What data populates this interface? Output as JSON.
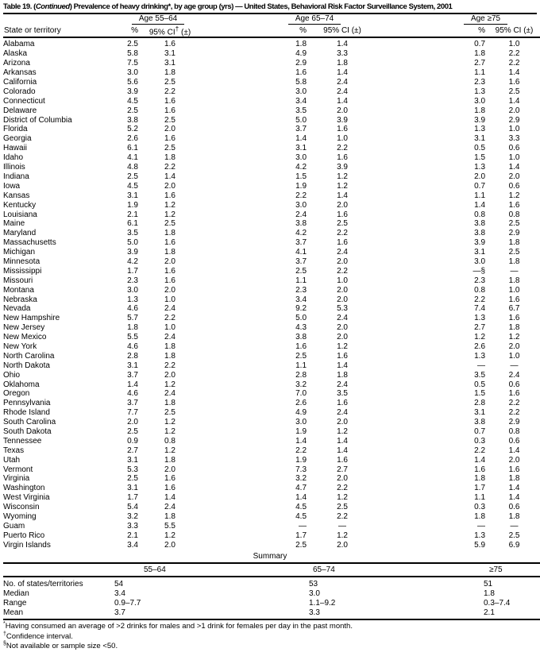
{
  "title": {
    "part1": "Table 19. (",
    "part2": "Continued",
    "part3": ") Prevalence of heavy drinking*, by age group (yrs) — United States, Behavioral Risk Factor Surveillance System, 2001"
  },
  "table": {
    "state_col_header": "State or territory",
    "groups": [
      {
        "label": "Age 55–64",
        "pct_header": "%",
        "ci_pre": "95% CI",
        "ci_sup": "†",
        "ci_post": " (±)"
      },
      {
        "label": "Age 65–74",
        "pct_header": "%",
        "ci_pre": "95% CI",
        "ci_sup": "",
        "ci_post": " (±)"
      },
      {
        "label": "Age ≥75",
        "pct_header": "%",
        "ci_pre": "95% CI",
        "ci_sup": "",
        "ci_post": " (±)"
      }
    ],
    "rows": [
      {
        "state": "Alabama",
        "g1": [
          "2.5",
          "1.6"
        ],
        "g2": [
          "1.8",
          "1.4"
        ],
        "g3": [
          "0.7",
          "1.0"
        ]
      },
      {
        "state": "Alaska",
        "g1": [
          "5.8",
          "3.1"
        ],
        "g2": [
          "4.9",
          "3.3"
        ],
        "g3": [
          "1.8",
          "2.2"
        ]
      },
      {
        "state": "Arizona",
        "g1": [
          "7.5",
          "3.1"
        ],
        "g2": [
          "2.9",
          "1.8"
        ],
        "g3": [
          "2.7",
          "2.2"
        ]
      },
      {
        "state": "Arkansas",
        "g1": [
          "3.0",
          "1.8"
        ],
        "g2": [
          "1.6",
          "1.4"
        ],
        "g3": [
          "1.1",
          "1.4"
        ]
      },
      {
        "state": "California",
        "g1": [
          "5.6",
          "2.5"
        ],
        "g2": [
          "5.8",
          "2.4"
        ],
        "g3": [
          "2.3",
          "1.6"
        ]
      },
      {
        "state": "Colorado",
        "g1": [
          "3.9",
          "2.2"
        ],
        "g2": [
          "3.0",
          "2.4"
        ],
        "g3": [
          "1.3",
          "2.5"
        ]
      },
      {
        "state": "Connecticut",
        "g1": [
          "4.5",
          "1.6"
        ],
        "g2": [
          "3.4",
          "1.4"
        ],
        "g3": [
          "3.0",
          "1.4"
        ]
      },
      {
        "state": "Delaware",
        "g1": [
          "2.5",
          "1.6"
        ],
        "g2": [
          "3.5",
          "2.0"
        ],
        "g3": [
          "1.8",
          "2.0"
        ]
      },
      {
        "state": "District of Columbia",
        "g1": [
          "3.8",
          "2.5"
        ],
        "g2": [
          "5.0",
          "3.9"
        ],
        "g3": [
          "3.9",
          "2.9"
        ]
      },
      {
        "state": "Florida",
        "g1": [
          "5.2",
          "2.0"
        ],
        "g2": [
          "3.7",
          "1.6"
        ],
        "g3": [
          "1.3",
          "1.0"
        ]
      },
      {
        "state": "Georgia",
        "g1": [
          "2.6",
          "1.6"
        ],
        "g2": [
          "1.4",
          "1.0"
        ],
        "g3": [
          "3.1",
          "3.3"
        ]
      },
      {
        "state": "Hawaii",
        "g1": [
          "6.1",
          "2.5"
        ],
        "g2": [
          "3.1",
          "2.2"
        ],
        "g3": [
          "0.5",
          "0.6"
        ]
      },
      {
        "state": "Idaho",
        "g1": [
          "4.1",
          "1.8"
        ],
        "g2": [
          "3.0",
          "1.6"
        ],
        "g3": [
          "1.5",
          "1.0"
        ]
      },
      {
        "state": "Illinois",
        "g1": [
          "4.8",
          "2.2"
        ],
        "g2": [
          "4.2",
          "3.9"
        ],
        "g3": [
          "1.3",
          "1.4"
        ]
      },
      {
        "state": "Indiana",
        "g1": [
          "2.5",
          "1.4"
        ],
        "g2": [
          "1.5",
          "1.2"
        ],
        "g3": [
          "2.0",
          "2.0"
        ]
      },
      {
        "state": "Iowa",
        "g1": [
          "4.5",
          "2.0"
        ],
        "g2": [
          "1.9",
          "1.2"
        ],
        "g3": [
          "0.7",
          "0.6"
        ]
      },
      {
        "state": "Kansas",
        "g1": [
          "3.1",
          "1.6"
        ],
        "g2": [
          "2.2",
          "1.4"
        ],
        "g3": [
          "1.1",
          "1.2"
        ]
      },
      {
        "state": "Kentucky",
        "g1": [
          "1.9",
          "1.2"
        ],
        "g2": [
          "3.0",
          "2.0"
        ],
        "g3": [
          "1.4",
          "1.6"
        ]
      },
      {
        "state": "Louisiana",
        "g1": [
          "2.1",
          "1.2"
        ],
        "g2": [
          "2.4",
          "1.6"
        ],
        "g3": [
          "0.8",
          "0.8"
        ]
      },
      {
        "state": "Maine",
        "g1": [
          "6.1",
          "2.5"
        ],
        "g2": [
          "3.8",
          "2.5"
        ],
        "g3": [
          "3.8",
          "2.5"
        ]
      },
      {
        "state": "Maryland",
        "g1": [
          "3.5",
          "1.8"
        ],
        "g2": [
          "4.2",
          "2.2"
        ],
        "g3": [
          "3.8",
          "2.9"
        ]
      },
      {
        "state": "Massachusetts",
        "g1": [
          "5.0",
          "1.6"
        ],
        "g2": [
          "3.7",
          "1.6"
        ],
        "g3": [
          "3.9",
          "1.8"
        ]
      },
      {
        "state": "Michigan",
        "g1": [
          "3.9",
          "1.8"
        ],
        "g2": [
          "4.1",
          "2.4"
        ],
        "g3": [
          "3.1",
          "2.5"
        ]
      },
      {
        "state": "Minnesota",
        "g1": [
          "4.2",
          "2.0"
        ],
        "g2": [
          "3.7",
          "2.0"
        ],
        "g3": [
          "3.0",
          "1.8"
        ]
      },
      {
        "state": "Mississippi",
        "g1": [
          "1.7",
          "1.6"
        ],
        "g2": [
          "2.5",
          "2.2"
        ],
        "g3": [
          "—§",
          "—"
        ]
      },
      {
        "state": "Missouri",
        "g1": [
          "2.3",
          "1.6"
        ],
        "g2": [
          "1.1",
          "1.0"
        ],
        "g3": [
          "2.3",
          "1.8"
        ]
      },
      {
        "state": "Montana",
        "g1": [
          "3.0",
          "2.0"
        ],
        "g2": [
          "2.3",
          "2.0"
        ],
        "g3": [
          "0.8",
          "1.0"
        ]
      },
      {
        "state": "Nebraska",
        "g1": [
          "1.3",
          "1.0"
        ],
        "g2": [
          "3.4",
          "2.0"
        ],
        "g3": [
          "2.2",
          "1.6"
        ]
      },
      {
        "state": "Nevada",
        "g1": [
          "4.6",
          "2.4"
        ],
        "g2": [
          "9.2",
          "5.3"
        ],
        "g3": [
          "7.4",
          "6.7"
        ]
      },
      {
        "state": "New Hampshire",
        "g1": [
          "5.7",
          "2.2"
        ],
        "g2": [
          "5.0",
          "2.4"
        ],
        "g3": [
          "1.3",
          "1.6"
        ]
      },
      {
        "state": "New Jersey",
        "g1": [
          "1.8",
          "1.0"
        ],
        "g2": [
          "4.3",
          "2.0"
        ],
        "g3": [
          "2.7",
          "1.8"
        ]
      },
      {
        "state": "New Mexico",
        "g1": [
          "5.5",
          "2.4"
        ],
        "g2": [
          "3.8",
          "2.0"
        ],
        "g3": [
          "1.2",
          "1.2"
        ]
      },
      {
        "state": "New York",
        "g1": [
          "4.6",
          "1.8"
        ],
        "g2": [
          "1.6",
          "1.2"
        ],
        "g3": [
          "2.6",
          "2.0"
        ]
      },
      {
        "state": "North Carolina",
        "g1": [
          "2.8",
          "1.8"
        ],
        "g2": [
          "2.5",
          "1.6"
        ],
        "g3": [
          "1.3",
          "1.0"
        ]
      },
      {
        "state": "North Dakota",
        "g1": [
          "3.1",
          "2.2"
        ],
        "g2": [
          "1.1",
          "1.4"
        ],
        "g3": [
          "—",
          "—"
        ]
      },
      {
        "state": "Ohio",
        "g1": [
          "3.7",
          "2.0"
        ],
        "g2": [
          "2.8",
          "1.8"
        ],
        "g3": [
          "3.5",
          "2.4"
        ]
      },
      {
        "state": "Oklahoma",
        "g1": [
          "1.4",
          "1.2"
        ],
        "g2": [
          "3.2",
          "2.4"
        ],
        "g3": [
          "0.5",
          "0.6"
        ]
      },
      {
        "state": "Oregon",
        "g1": [
          "4.6",
          "2.4"
        ],
        "g2": [
          "7.0",
          "3.5"
        ],
        "g3": [
          "1.5",
          "1.6"
        ]
      },
      {
        "state": "Pennsylvania",
        "g1": [
          "3.7",
          "1.8"
        ],
        "g2": [
          "2.6",
          "1.6"
        ],
        "g3": [
          "2.8",
          "2.2"
        ]
      },
      {
        "state": "Rhode Island",
        "g1": [
          "7.7",
          "2.5"
        ],
        "g2": [
          "4.9",
          "2.4"
        ],
        "g3": [
          "3.1",
          "2.2"
        ]
      },
      {
        "state": "South Carolina",
        "g1": [
          "2.0",
          "1.2"
        ],
        "g2": [
          "3.0",
          "2.0"
        ],
        "g3": [
          "3.8",
          "2.9"
        ]
      },
      {
        "state": "South Dakota",
        "g1": [
          "2.5",
          "1.2"
        ],
        "g2": [
          "1.9",
          "1.2"
        ],
        "g3": [
          "0.7",
          "0.8"
        ]
      },
      {
        "state": "Tennessee",
        "g1": [
          "0.9",
          "0.8"
        ],
        "g2": [
          "1.4",
          "1.4"
        ],
        "g3": [
          "0.3",
          "0.6"
        ]
      },
      {
        "state": "Texas",
        "g1": [
          "2.7",
          "1.2"
        ],
        "g2": [
          "2.2",
          "1.4"
        ],
        "g3": [
          "2.2",
          "1.4"
        ]
      },
      {
        "state": "Utah",
        "g1": [
          "3.1",
          "1.8"
        ],
        "g2": [
          "1.9",
          "1.6"
        ],
        "g3": [
          "1.4",
          "2.0"
        ]
      },
      {
        "state": "Vermont",
        "g1": [
          "5.3",
          "2.0"
        ],
        "g2": [
          "7.3",
          "2.7"
        ],
        "g3": [
          "1.6",
          "1.6"
        ]
      },
      {
        "state": "Virginia",
        "g1": [
          "2.5",
          "1.6"
        ],
        "g2": [
          "3.2",
          "2.0"
        ],
        "g3": [
          "1.8",
          "1.8"
        ]
      },
      {
        "state": "Washington",
        "g1": [
          "3.1",
          "1.6"
        ],
        "g2": [
          "4.7",
          "2.2"
        ],
        "g3": [
          "1.7",
          "1.4"
        ]
      },
      {
        "state": "West Virginia",
        "g1": [
          "1.7",
          "1.4"
        ],
        "g2": [
          "1.4",
          "1.2"
        ],
        "g3": [
          "1.1",
          "1.4"
        ]
      },
      {
        "state": "Wisconsin",
        "g1": [
          "5.4",
          "2.4"
        ],
        "g2": [
          "4.5",
          "2.5"
        ],
        "g3": [
          "0.3",
          "0.6"
        ]
      },
      {
        "state": "Wyoming",
        "g1": [
          "3.2",
          "1.8"
        ],
        "g2": [
          "4.5",
          "2.2"
        ],
        "g3": [
          "1.8",
          "1.8"
        ]
      },
      {
        "state": "Guam",
        "g1": [
          "3.3",
          "5.5"
        ],
        "g2": [
          "—",
          "—"
        ],
        "g3": [
          "—",
          "—"
        ]
      },
      {
        "state": "Puerto Rico",
        "g1": [
          "2.1",
          "1.2"
        ],
        "g2": [
          "1.7",
          "1.2"
        ],
        "g3": [
          "1.3",
          "2.5"
        ]
      },
      {
        "state": "Virgin Islands",
        "g1": [
          "3.4",
          "2.0"
        ],
        "g2": [
          "2.5",
          "2.0"
        ],
        "g3": [
          "5.9",
          "6.9"
        ]
      }
    ]
  },
  "summary": {
    "heading": "Summary",
    "col_headers": [
      "55–64",
      "65–74",
      "≥75"
    ],
    "rows": [
      {
        "label": "No. of states/territories",
        "values": [
          "54",
          "53",
          "51"
        ]
      },
      {
        "label": "Median",
        "values": [
          "3.4",
          "3.0",
          "1.8"
        ]
      },
      {
        "label": "Range",
        "values": [
          "0.9–7.7",
          "1.1–9.2",
          "0.3–7.4"
        ]
      },
      {
        "label": "Mean",
        "values": [
          "3.7",
          "3.3",
          "2.1"
        ]
      }
    ]
  },
  "footnotes": [
    {
      "marker": "*",
      "text": "Having consumed an average of >2 drinks for males and >1 drink for females per day in the past month."
    },
    {
      "marker": "†",
      "text": "Confidence interval."
    },
    {
      "marker": "§",
      "text": "Not available or sample size <50."
    }
  ]
}
